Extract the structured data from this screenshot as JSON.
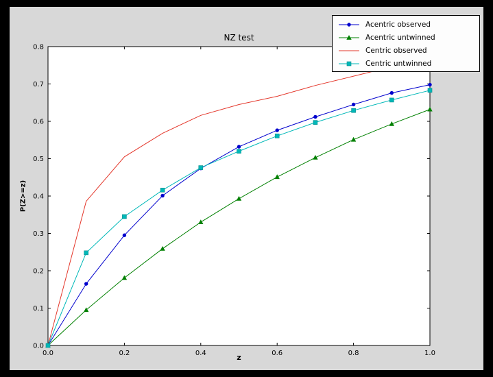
{
  "colors": {
    "outer_bg": "#000000",
    "figure_bg": "#d8d8d8",
    "plot_bg": "#ffffff",
    "frame": "#000000",
    "text": "#000000",
    "legend_bg": "#fdfdfd"
  },
  "chart_data": {
    "type": "line",
    "title": "NZ test",
    "xlabel": "z",
    "ylabel": "P(Z>=z)",
    "xlim": [
      0.0,
      1.0
    ],
    "ylim": [
      0.0,
      0.8
    ],
    "grid": false,
    "legend_position": "upper right",
    "xticks": [
      0.0,
      0.2,
      0.4,
      0.6,
      0.8,
      1.0
    ],
    "xtick_labels": [
      "0.0",
      "0.2",
      "0.4",
      "0.6",
      "0.8",
      "1.0"
    ],
    "yticks": [
      0.0,
      0.1,
      0.2,
      0.3,
      0.4,
      0.5,
      0.6,
      0.7,
      0.8
    ],
    "ytick_labels": [
      "0.0",
      "0.1",
      "0.2",
      "0.3",
      "0.4",
      "0.5",
      "0.6",
      "0.7",
      "0.8"
    ],
    "x": [
      0.0,
      0.1,
      0.2,
      0.3,
      0.4,
      0.5,
      0.6,
      0.7,
      0.8,
      0.9,
      1.0
    ],
    "series": [
      {
        "name": "Acentric observed",
        "color": "#0000cd",
        "marker": "circle",
        "values": [
          0.0,
          0.165,
          0.295,
          0.401,
          0.474,
          0.532,
          0.576,
          0.612,
          0.645,
          0.676,
          0.698
        ]
      },
      {
        "name": "Acentric untwinned",
        "color": "#008000",
        "marker": "triangle",
        "values": [
          0.0,
          0.095,
          0.181,
          0.259,
          0.33,
          0.393,
          0.451,
          0.503,
          0.551,
          0.593,
          0.632
        ]
      },
      {
        "name": "Centric observed",
        "color": "#e4372b",
        "marker": "none",
        "values": [
          0.0,
          0.386,
          0.505,
          0.568,
          0.616,
          0.645,
          0.667,
          0.696,
          0.721,
          0.746,
          0.766
        ]
      },
      {
        "name": "Centric untwinned",
        "color": "#00b8b8",
        "marker": "square",
        "values": [
          0.0,
          0.248,
          0.345,
          0.416,
          0.476,
          0.52,
          0.561,
          0.597,
          0.629,
          0.657,
          0.683
        ]
      }
    ]
  }
}
